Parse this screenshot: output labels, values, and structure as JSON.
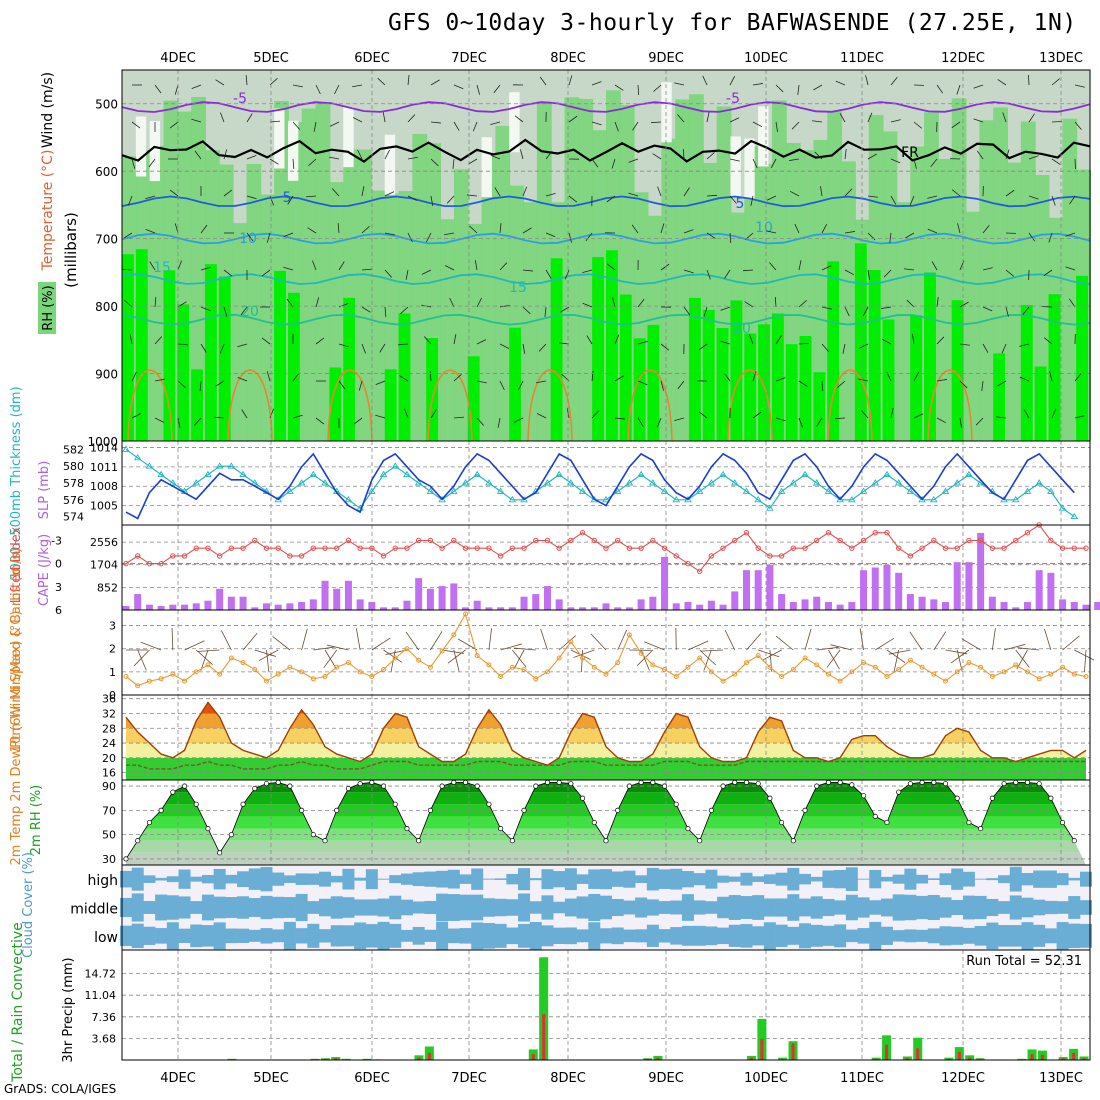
{
  "title": "GFS 0~10day 3-hourly for BAFWASENDE (27.25E, 1N)",
  "footer": "GrADS: COLA/IGES",
  "run_total_label": "Run Total = 52.31",
  "dates": [
    "4DEC",
    "5DEC",
    "6DEC",
    "7DEC",
    "8DEC",
    "9DEC",
    "10DEC",
    "11DEC",
    "12DEC",
    "13DEC"
  ],
  "colors": {
    "rh_light": "#c8d8c8",
    "rh_mid": "#7ad67a",
    "rh_high": "#00ee00",
    "temp_purple": "#8a2bd6",
    "temp_blue": "#1f5fd6",
    "temp_lblue": "#2aa0e0",
    "temp_teal": "#20b8b8",
    "temp_green": "#20c090",
    "slp": "#1a3fd0",
    "thickness": "#20b8c0",
    "lifted": "#e05050",
    "cape": "#c070f0",
    "wind_speed": "#e89a30",
    "barbs": "#6a4a30",
    "temp2m": "#a04000",
    "cloud": "#6aaed6",
    "precip_total": "#22cc22",
    "precip_conv": "#e03030"
  },
  "chart_data": [
    {
      "type": "heatmap",
      "name": "upper-air",
      "ylabel": "(millibars)",
      "legend_labels": {
        "rh": "RH (%)",
        "temp": "Temperature (°C)",
        "wind": "Wind (m/s)"
      },
      "yticks": [
        500,
        600,
        700,
        800,
        900,
        1000
      ],
      "ylim": [
        450,
        1000
      ],
      "isotherm_labels": [
        "-5",
        "-5",
        "FR",
        "5",
        "5",
        "10",
        "10",
        "15",
        "15",
        "20",
        "20"
      ],
      "isotherms": [
        {
          "label": "-5",
          "p": 505,
          "color": "#8a2bd6"
        },
        {
          "label": "FR",
          "p": 570,
          "color": "#000000"
        },
        {
          "label": "5",
          "p": 645,
          "color": "#1f5fd6"
        },
        {
          "label": "10",
          "p": 700,
          "color": "#2aa0e0"
        },
        {
          "label": "15",
          "p": 760,
          "color": "#20b8b8"
        },
        {
          "label": "20",
          "p": 820,
          "color": "#20c090"
        }
      ]
    },
    {
      "type": "line",
      "name": "slp-thickness",
      "ylabel_left": "1000~500mb Thickness (dm)",
      "ylabel_right": "SLP (mb)",
      "thickness_ticks": [
        574,
        576,
        578,
        580,
        582
      ],
      "slp_ticks": [
        1005,
        1008,
        1011,
        1014
      ],
      "slp": [
        1004,
        1003,
        1007,
        1009,
        1008,
        1007,
        1006,
        1008,
        1010,
        1009,
        1009,
        1008,
        1007,
        1006,
        1008,
        1011,
        1013,
        1010,
        1007,
        1005,
        1004,
        1009,
        1012,
        1013,
        1011,
        1009,
        1008,
        1006,
        1008,
        1011,
        1013,
        1012,
        1010,
        1008,
        1006,
        1007,
        1010,
        1013,
        1012,
        1009,
        1006,
        1005,
        1008,
        1011,
        1013,
        1012,
        1009,
        1007,
        1006,
        1008,
        1011,
        1013,
        1012,
        1010,
        1007,
        1006,
        1009,
        1012,
        1013,
        1011,
        1008,
        1006,
        1008,
        1011,
        1013,
        1012,
        1010,
        1008,
        1006,
        1008,
        1011,
        1013,
        1011,
        1009,
        1007,
        1006,
        1009,
        1012,
        1013,
        1011,
        1009,
        1007
      ],
      "thickness": [
        582,
        581,
        580,
        579,
        578,
        577,
        578,
        579,
        580,
        580,
        579,
        578,
        577,
        576,
        577,
        578,
        579,
        578,
        577,
        576,
        575,
        577,
        579,
        580,
        579,
        578,
        577,
        576,
        577,
        578,
        579,
        578,
        577,
        576,
        576,
        577,
        578,
        579,
        578,
        577,
        576,
        576,
        577,
        578,
        579,
        578,
        577,
        576,
        576,
        577,
        578,
        579,
        578,
        577,
        576,
        575,
        577,
        578,
        579,
        578,
        577,
        576,
        576,
        577,
        578,
        579,
        578,
        577,
        576,
        576,
        577,
        578,
        579,
        578,
        577,
        576,
        576,
        577,
        578,
        577,
        575,
        574
      ]
    },
    {
      "type": "bar",
      "name": "lifted-cape",
      "ylabel_left": "Lifted Index",
      "ylabel_right": "CAPE (J/kg)",
      "li_ticks": [
        -3,
        0,
        3,
        6
      ],
      "cape_ticks": [
        852,
        1704,
        2556
      ],
      "lifted_index": [
        0,
        -1,
        0,
        0,
        -1,
        -1,
        -2,
        -2,
        -1,
        -2,
        -2,
        -3,
        -2,
        -2,
        -1,
        -1,
        -2,
        -2,
        -2,
        -3,
        -2,
        -2,
        -1,
        -2,
        -2,
        -3,
        -3,
        -2,
        -3,
        -2,
        -2,
        -2,
        -1,
        -2,
        -2,
        -3,
        -3,
        -2,
        -3,
        -4,
        -3,
        -2,
        -3,
        -2,
        -2,
        -3,
        -2,
        -1,
        0,
        1,
        -1,
        -2,
        -3,
        -4,
        -2,
        -1,
        -1,
        -2,
        -2,
        -3,
        -4,
        -3,
        -2,
        -3,
        -4,
        -4,
        -2,
        -1,
        -2,
        -3,
        -2,
        -2,
        -3,
        -3,
        -2,
        -2,
        -3,
        -4,
        -5,
        -3,
        -2,
        -2,
        -2
      ],
      "cape": [
        150,
        600,
        200,
        150,
        200,
        200,
        250,
        350,
        800,
        500,
        500,
        100,
        250,
        200,
        250,
        300,
        400,
        1100,
        800,
        1100,
        400,
        300,
        100,
        100,
        350,
        1200,
        800,
        900,
        1000,
        100,
        350,
        100,
        100,
        100,
        500,
        600,
        900,
        400,
        100,
        100,
        100,
        250,
        100,
        100,
        400,
        500,
        2000,
        250,
        300,
        200,
        350,
        200,
        700,
        1500,
        1500,
        1700,
        600,
        300,
        400,
        500,
        300,
        200,
        300,
        1500,
        1600,
        1700,
        1400,
        600,
        500,
        400,
        300,
        1800,
        1800,
        2900,
        500,
        300,
        100,
        300,
        1500,
        1400,
        400,
        300,
        200,
        300,
        400
      ]
    },
    {
      "type": "line",
      "name": "wind10m",
      "ylabel": "10m Wind Speed & Barbs (m/s)",
      "yticks": [
        0,
        1,
        2,
        3
      ],
      "ylim": [
        0,
        3.5
      ],
      "speed": [
        0.8,
        0.4,
        0.6,
        0.7,
        0.9,
        0.6,
        1.0,
        1.3,
        0.9,
        1.6,
        1.4,
        1.1,
        0.6,
        0.9,
        1.2,
        1.0,
        0.7,
        0.8,
        1.2,
        1.4,
        1.0,
        0.8,
        1.1,
        1.6,
        2.0,
        1.5,
        1.2,
        1.9,
        2.6,
        3.5,
        1.7,
        1.3,
        0.8,
        1.2,
        1.1,
        0.7,
        1.0,
        1.6,
        2.3,
        1.6,
        1.2,
        0.9,
        1.4,
        2.6,
        1.8,
        1.3,
        1.1,
        0.8,
        1.2,
        1.6,
        1.0,
        0.6,
        0.9,
        1.4,
        1.7,
        1.2,
        0.8,
        1.1,
        1.6,
        1.3,
        0.9,
        0.6,
        1.0,
        1.4,
        1.2,
        0.8,
        1.1,
        1.5,
        1.2,
        0.9,
        0.6,
        1.0,
        1.4,
        1.2,
        0.8,
        1.0,
        1.3,
        1.0,
        0.7,
        0.9,
        1.2,
        0.9,
        0.8
      ]
    },
    {
      "type": "area",
      "name": "temp2m",
      "ylabel": "2m Temp 2m DewPt (6hr Min/Max) (°C)",
      "yticks": [
        16,
        20,
        24,
        28,
        32,
        36
      ],
      "ylim": [
        14,
        37
      ],
      "temp": [
        31,
        27,
        24,
        21,
        20,
        22,
        30,
        35,
        31,
        24,
        22,
        21,
        20,
        22,
        28,
        33,
        29,
        23,
        21,
        20,
        19,
        21,
        28,
        32,
        31,
        23,
        21,
        19,
        19,
        21,
        28,
        33,
        29,
        22,
        20,
        19,
        18,
        20,
        27,
        32,
        31,
        23,
        20,
        19,
        19,
        21,
        27,
        32,
        31,
        23,
        20,
        19,
        19,
        20,
        27,
        31,
        30,
        22,
        20,
        20,
        19,
        20,
        25,
        26,
        26,
        23,
        21,
        20,
        20,
        21,
        26,
        28,
        27,
        22,
        20,
        20,
        19,
        20,
        21,
        22,
        22,
        20,
        22
      ],
      "dewpt": [
        18,
        18,
        17,
        17,
        17,
        18,
        18,
        19,
        18,
        18,
        17,
        17,
        17,
        18,
        18,
        19,
        18,
        18,
        17,
        17,
        17,
        18,
        19,
        19,
        19,
        18,
        18,
        18,
        18,
        18,
        19,
        19,
        19,
        18,
        18,
        18,
        18,
        18,
        19,
        19,
        19,
        18,
        18,
        18,
        18,
        18,
        19,
        19,
        19,
        18,
        18,
        18,
        18,
        19,
        19,
        19,
        19,
        19,
        19,
        19,
        19,
        19,
        19,
        19,
        19,
        19,
        19,
        19,
        19,
        19,
        19,
        19,
        19,
        19,
        19,
        19,
        19,
        19,
        19,
        19,
        19,
        19,
        19
      ]
    },
    {
      "type": "area",
      "name": "rh2m",
      "ylabel": "2m RH (%)",
      "yticks": [
        30,
        50,
        70,
        90
      ],
      "ylim": [
        25,
        95
      ],
      "rh": [
        30,
        45,
        60,
        70,
        85,
        90,
        75,
        55,
        35,
        50,
        75,
        88,
        92,
        93,
        90,
        70,
        50,
        45,
        70,
        88,
        92,
        93,
        90,
        75,
        55,
        45,
        70,
        90,
        93,
        93,
        90,
        75,
        55,
        45,
        70,
        90,
        93,
        93,
        92,
        80,
        60,
        45,
        70,
        90,
        93,
        93,
        90,
        75,
        55,
        45,
        70,
        90,
        93,
        93,
        92,
        80,
        60,
        45,
        70,
        90,
        93,
        93,
        91,
        82,
        65,
        60,
        85,
        92,
        93,
        93,
        92,
        80,
        60,
        55,
        80,
        92,
        93,
        93,
        92,
        80,
        60,
        45
      ]
    },
    {
      "type": "heatmap",
      "name": "cloud-cover",
      "ylabel": "Cloud Cover (%)",
      "level_labels": [
        "high",
        "middle",
        "low"
      ]
    },
    {
      "type": "bar",
      "name": "precip",
      "ylabel_left": "Total / Rain Convective",
      "ylabel_right": "3hr Precip (mm)",
      "yticks": [
        "3.68",
        "7.36",
        "11.04",
        "14.72"
      ],
      "ylim": [
        0,
        18.4
      ],
      "total": [
        0,
        0,
        0,
        0,
        0,
        0,
        0,
        0,
        0,
        0,
        0.2,
        0,
        0,
        0,
        0,
        0,
        0,
        0,
        0.2,
        0.3,
        0.5,
        0.2,
        0,
        0.2,
        0.1,
        0,
        0,
        0,
        0.8,
        2.3,
        0,
        0,
        0,
        0,
        0,
        0,
        0,
        0,
        0,
        1.8,
        17.5,
        0,
        0,
        0,
        0,
        0,
        0,
        0,
        0,
        0,
        0.3,
        0.7,
        0,
        0,
        0,
        0,
        0,
        0,
        0,
        0,
        0.7,
        7.0,
        0,
        0.4,
        3.2,
        0,
        0,
        0,
        0,
        0,
        0,
        0,
        0.4,
        4.2,
        0,
        0.6,
        3.8,
        0,
        0,
        0.4,
        2.2,
        0.8,
        0.3,
        0,
        0,
        0,
        0.2,
        1.8,
        1.6,
        0,
        0.5,
        1.9,
        0.6
      ],
      "convective": [
        0,
        0,
        0,
        0,
        0,
        0,
        0,
        0,
        0,
        0,
        0.1,
        0,
        0,
        0,
        0,
        0,
        0,
        0,
        0.1,
        0.2,
        0.3,
        0.1,
        0,
        0.1,
        0.1,
        0,
        0,
        0,
        0.4,
        1.2,
        0,
        0,
        0,
        0,
        0,
        0,
        0,
        0,
        0,
        1.0,
        7.8,
        0,
        0,
        0,
        0,
        0,
        0,
        0,
        0,
        0,
        0.2,
        0.4,
        0,
        0,
        0,
        0,
        0,
        0,
        0,
        0,
        0.4,
        3.6,
        0,
        0.2,
        2.8,
        0,
        0,
        0,
        0,
        0,
        0,
        0,
        0.2,
        2.6,
        0,
        0.3,
        2.0,
        0,
        0,
        0.2,
        1.4,
        0.4,
        0.2,
        0,
        0,
        0,
        0.1,
        1.0,
        0.9,
        0,
        0.3,
        1.2,
        0.3
      ]
    }
  ]
}
